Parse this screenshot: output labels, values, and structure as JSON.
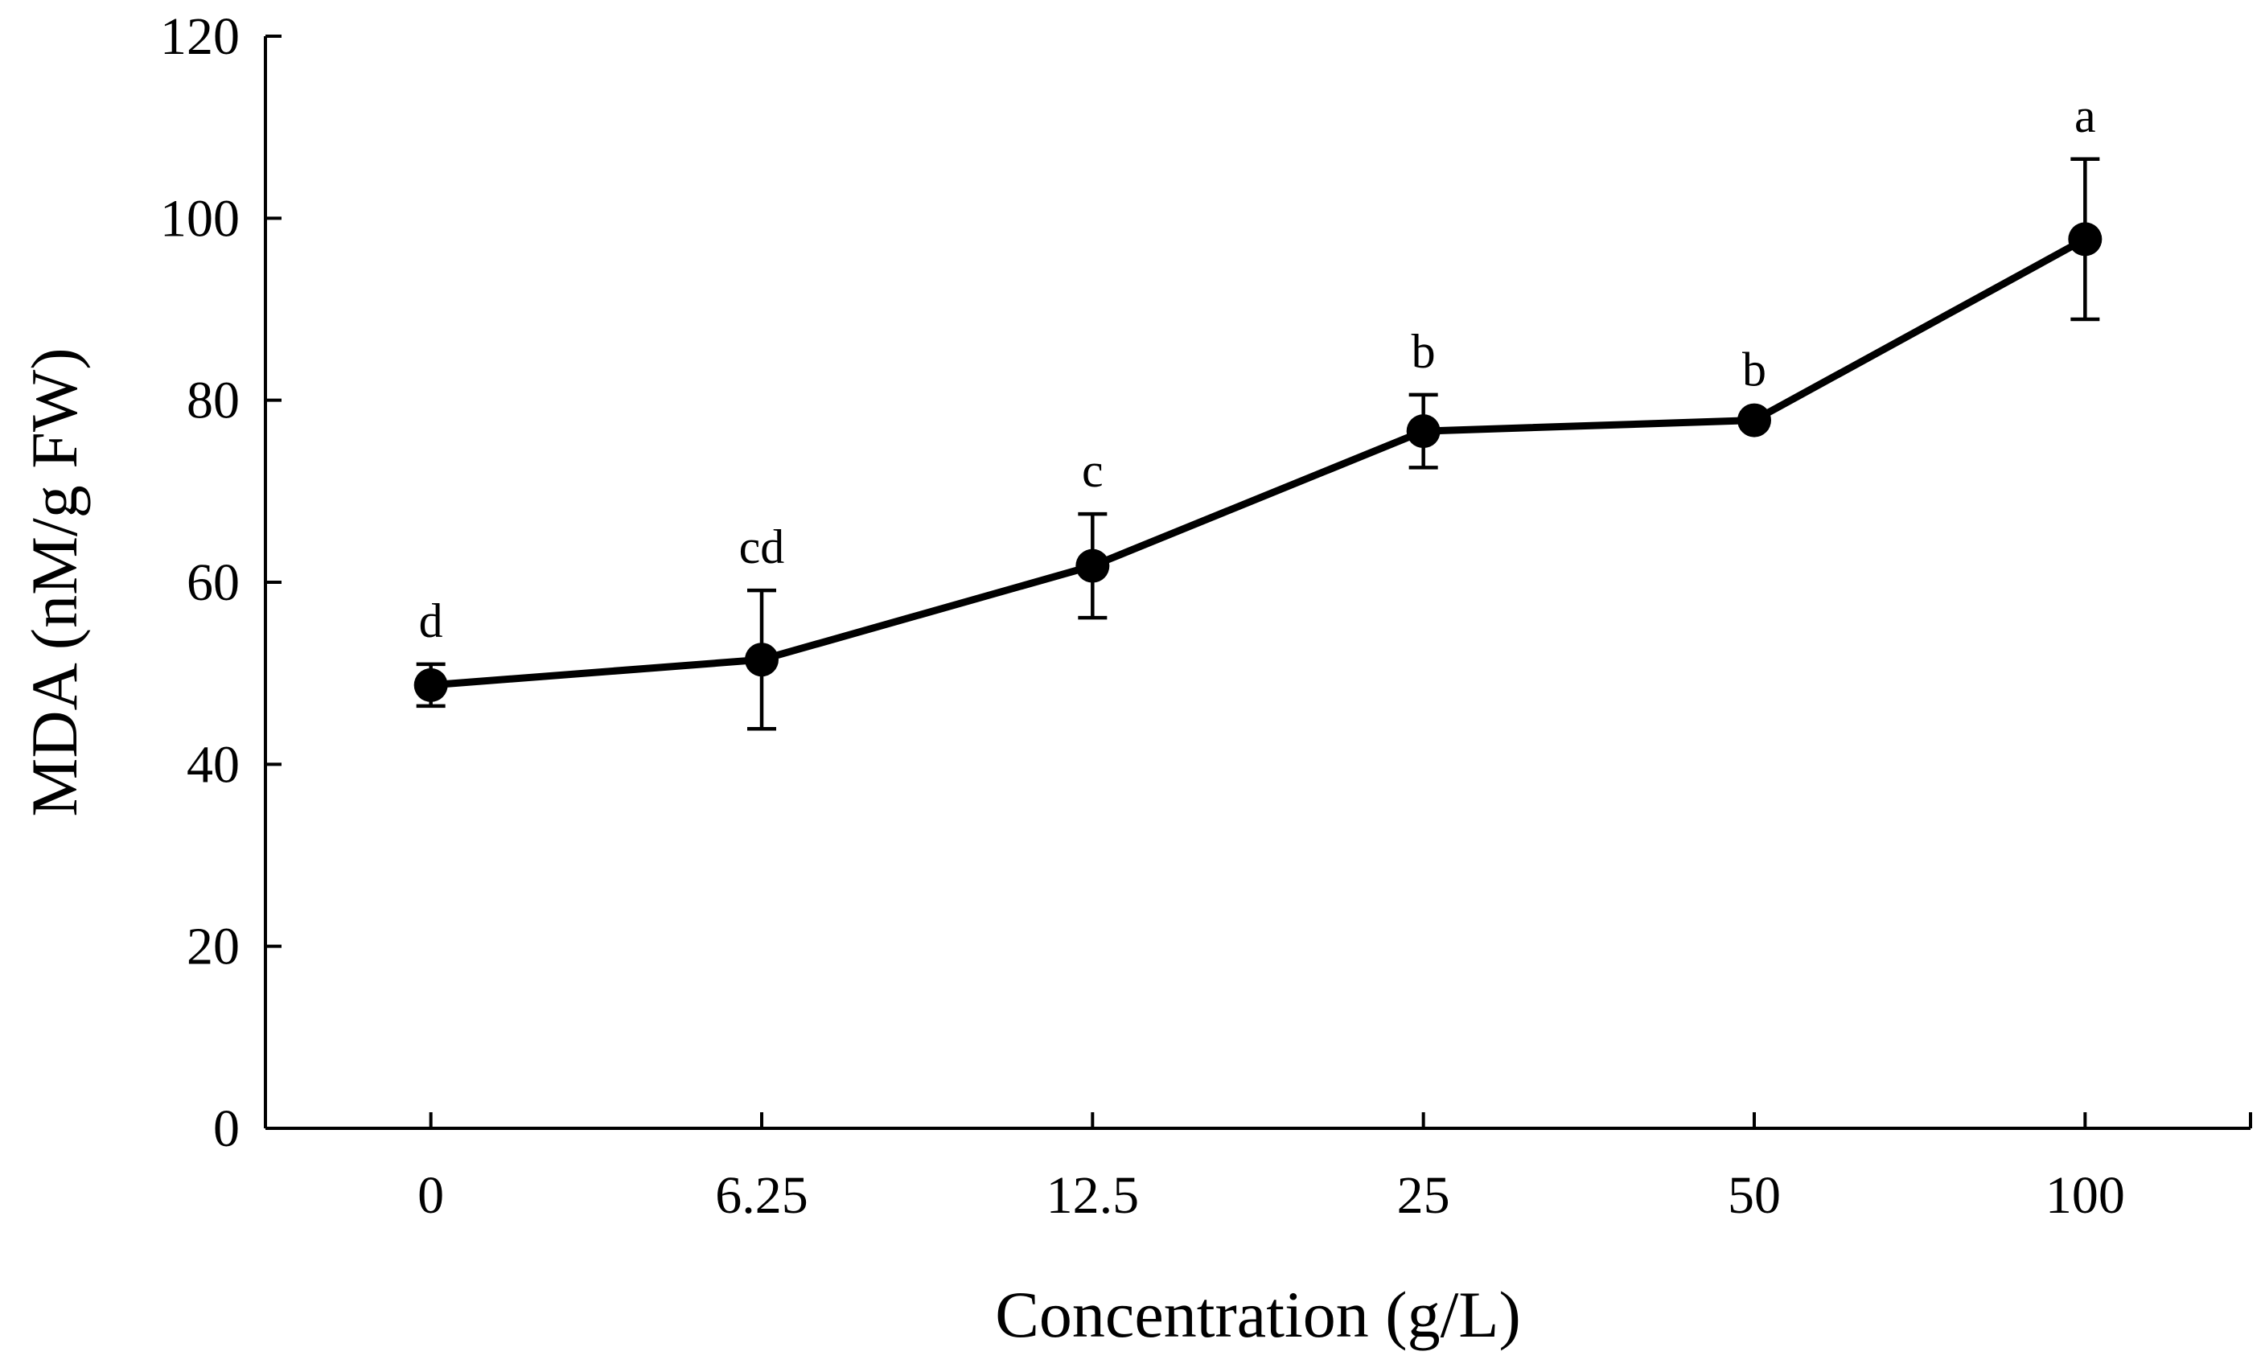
{
  "chart_data": {
    "type": "line",
    "title": "",
    "xlabel": "Concentration (g/L)",
    "ylabel": "MDA (nM/g FW)",
    "categories": [
      "0",
      "6.25",
      "12.5",
      "25",
      "50",
      "100"
    ],
    "series": [
      {
        "name": "MDA",
        "values": [
          48.7,
          51.5,
          61.8,
          76.6,
          77.8,
          97.7
        ],
        "errors": [
          2.3,
          7.6,
          5.7,
          4.0,
          0.8,
          8.8
        ],
        "significance": [
          "d",
          "cd",
          "c",
          "b",
          "b",
          "a"
        ]
      }
    ],
    "ylim": [
      0,
      120
    ],
    "yticks": [
      0,
      20,
      40,
      60,
      80,
      100,
      120
    ],
    "grid": false,
    "legend": "none"
  }
}
